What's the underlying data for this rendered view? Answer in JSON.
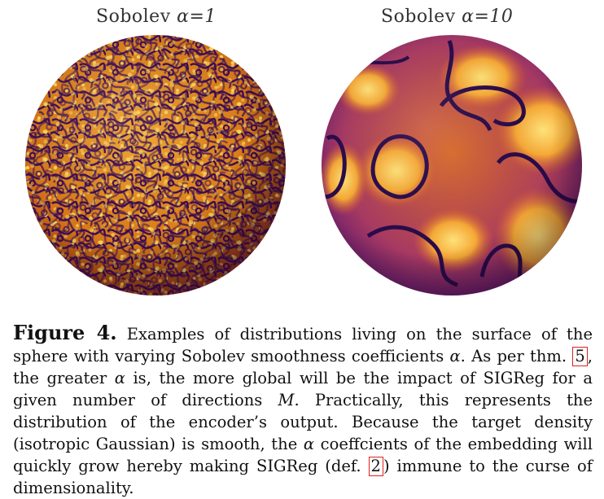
{
  "figure": {
    "left_title_text": "Sobolev ",
    "left_title_alpha": "α=1",
    "right_title_text": "Sobolev ",
    "right_title_alpha": "α=10"
  },
  "caption": {
    "label": "Figure 4.",
    "part1": " Examples of distributions living on the surface of the sphere with varying Sobolev smoothness coefficients ",
    "alpha1": "α",
    "part2": ".  As per thm. ",
    "ref_thm": "5",
    "part3": ", the greater ",
    "alpha2": "α",
    "part4": " is, the more global will be the impact of SIGReg for a given number of directions ",
    "M": "M",
    "part5": ". Practically, this represents the distribution of the encoder’s output. Because the target density (isotropic Gaussian) is smooth, the ",
    "alpha3": "α",
    "part6": " coeffcients of the embedding will quickly grow hereby making SIGReg (def. ",
    "ref_def": "2",
    "part7": ") immune to the curse of dimensionality."
  },
  "colors": {
    "dark": "#2a0b4a",
    "mid": "#c2500f",
    "bright": "#f6b231",
    "highlight": "#ffe27a"
  }
}
